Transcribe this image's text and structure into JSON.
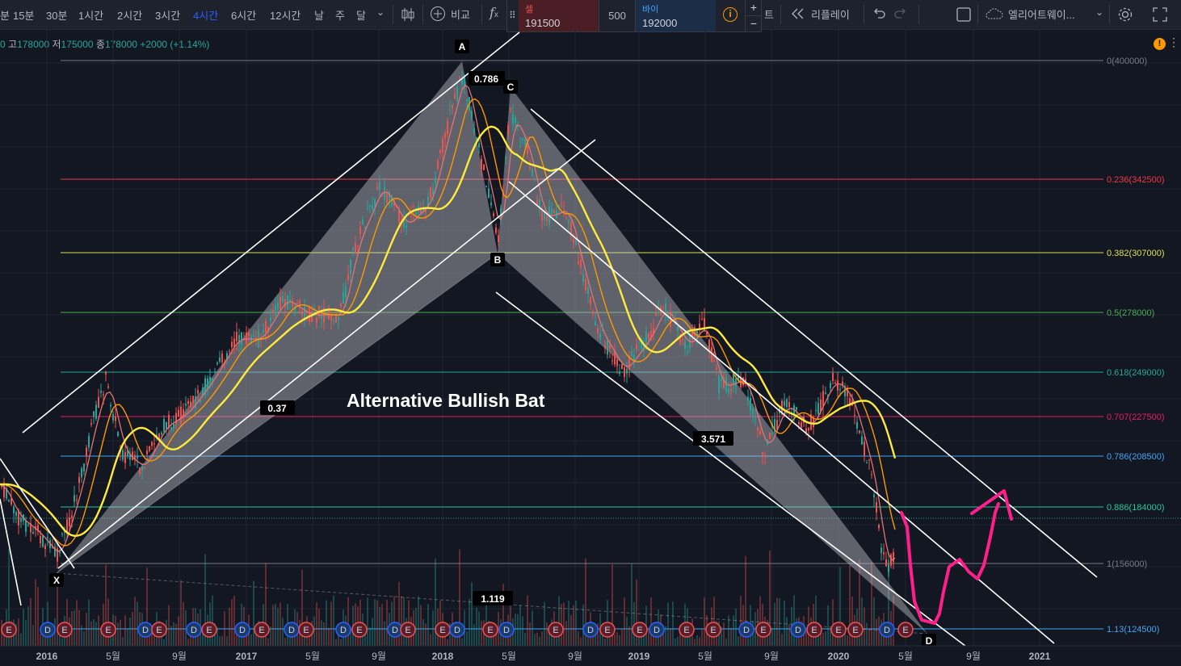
{
  "toolbar": {
    "timeframes": [
      "분",
      "15분",
      "30분",
      "1시간",
      "2시간",
      "3시간",
      "4시간",
      "6시간",
      "12시간",
      "날",
      "주",
      "달"
    ],
    "active_timeframe": "4시간",
    "compare_label": "비교",
    "indicator_label": "f",
    "indicator_sub": "x",
    "replay_label": "리플레이",
    "replay_prefix": "트",
    "layout_name": "엘리어트웨이...",
    "icons": [
      "chevron-down-icon",
      "candlestick-icon",
      "add-circle-icon",
      "function-icon",
      "rewind-icon",
      "undo-icon",
      "redo-icon",
      "square-icon",
      "cloud-icon",
      "gear-icon",
      "fullscreen-icon"
    ]
  },
  "trade": {
    "sell_label": "셀",
    "sell_price": "191500",
    "spread": "500",
    "buy_label": "바이",
    "buy_price": "192000",
    "plus": "+",
    "minus": "−",
    "info": "i"
  },
  "ohlc": {
    "prefix": "0",
    "high_label": "고",
    "high": "178000",
    "low_label": "저",
    "low": "175000",
    "close_label": "종",
    "close": "178000",
    "change": "+2000 (+1.14%)",
    "warning": "!"
  },
  "chart": {
    "title_annotation": "Alternative Bullish Bat",
    "points": {
      "X": "X",
      "A": "A",
      "B": "B",
      "C": "C",
      "D": "D"
    },
    "ratios": [
      "0.37",
      "0.786",
      "3.571",
      "1.119"
    ],
    "fib_levels": [
      {
        "label": "0(400000)",
        "color": "#787b86"
      },
      {
        "label": "0.236(342500)",
        "color": "#f23645"
      },
      {
        "label": "0.382(307000)",
        "color": "#d4e157"
      },
      {
        "label": "0.5(278000)",
        "color": "#4caf50"
      },
      {
        "label": "0.618(249000)",
        "color": "#26a69a"
      },
      {
        "label": "0.707(227500)",
        "color": "#e91e63"
      },
      {
        "label": "0.786(208500)",
        "color": "#42a5f5"
      },
      {
        "label": "0.886(184000)",
        "color": "#26c6a0"
      },
      {
        "label": "1(156000)",
        "color": "#787b86"
      },
      {
        "label": "1.13(124500)",
        "color": "#42a5f5"
      }
    ],
    "x_axis": [
      "2016",
      "5월",
      "9월",
      "2017",
      "5월",
      "9월",
      "2018",
      "5월",
      "9월",
      "2019",
      "5월",
      "9월",
      "2020",
      "5월",
      "9월",
      "2021"
    ],
    "event_markers": [
      "E",
      "D",
      "E",
      "E",
      "D",
      "E",
      "D",
      "E",
      "D",
      "E",
      "D",
      "E",
      "D",
      "E",
      "D",
      "E",
      "E",
      "D",
      "E",
      "D",
      "E",
      "D",
      "E",
      "E",
      "D",
      "E",
      "E",
      "D",
      "E",
      "D",
      "E"
    ],
    "colors": {
      "up": "#26a69a",
      "down": "#ef5350",
      "ma_fast": "#e57373",
      "ma_mid": "#ff9800",
      "ma_slow": "#ffeb3b",
      "forecast": "#ff1f8b"
    }
  }
}
